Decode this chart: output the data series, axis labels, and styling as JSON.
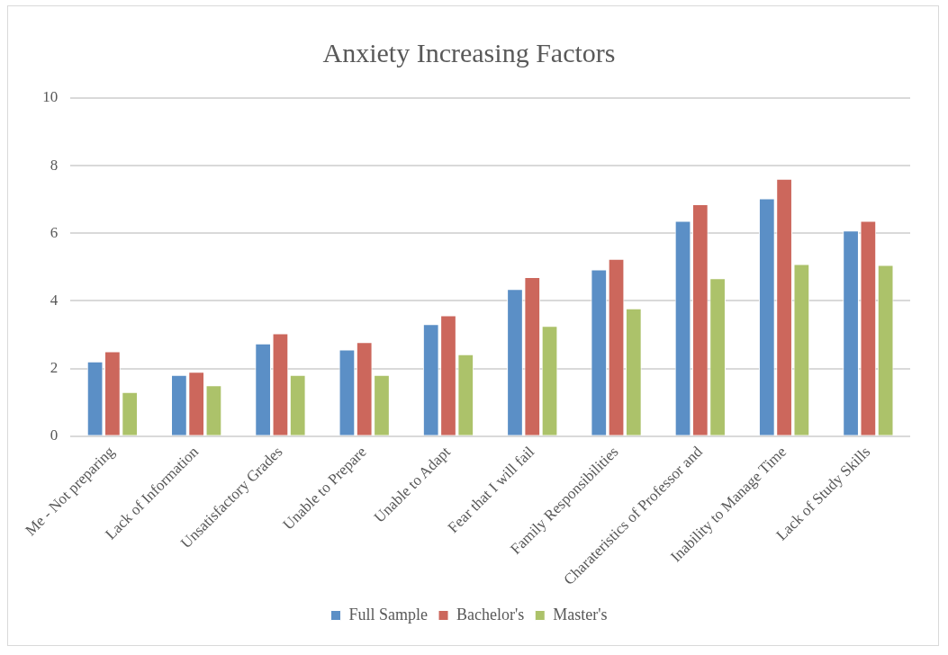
{
  "chart_data": {
    "type": "bar",
    "title": "Anxiety Increasing Factors",
    "categories": [
      "Me - Not preparing",
      "Lack of Information",
      "Unsatisfactory Grades",
      "Unable to Prepare",
      "Unable to Adapt",
      "Fear that I will fail",
      "Family Responsibilities",
      "Charateristics of Professor and",
      "Inability to Manage Time",
      "Lack of Study Skills"
    ],
    "series": [
      {
        "name": "Full Sample",
        "color": "#5b8fc6",
        "values": [
          2.21,
          1.81,
          2.74,
          2.56,
          3.31,
          4.35,
          4.93,
          6.37,
          7.03,
          6.08
        ]
      },
      {
        "name": "Bachelor's",
        "color": "#cc675c",
        "values": [
          2.51,
          1.9,
          3.04,
          2.78,
          3.57,
          4.7,
          5.24,
          6.86,
          7.61,
          6.37
        ]
      },
      {
        "name": "Master's",
        "color": "#acc26a",
        "values": [
          1.3,
          1.5,
          1.81,
          1.81,
          2.42,
          3.26,
          3.78,
          4.67,
          5.09,
          5.06
        ]
      }
    ],
    "ylim": [
      0,
      10
    ],
    "yticks": [
      0,
      2,
      4,
      6,
      8,
      10
    ],
    "grid": "y",
    "legend": "bottom"
  }
}
